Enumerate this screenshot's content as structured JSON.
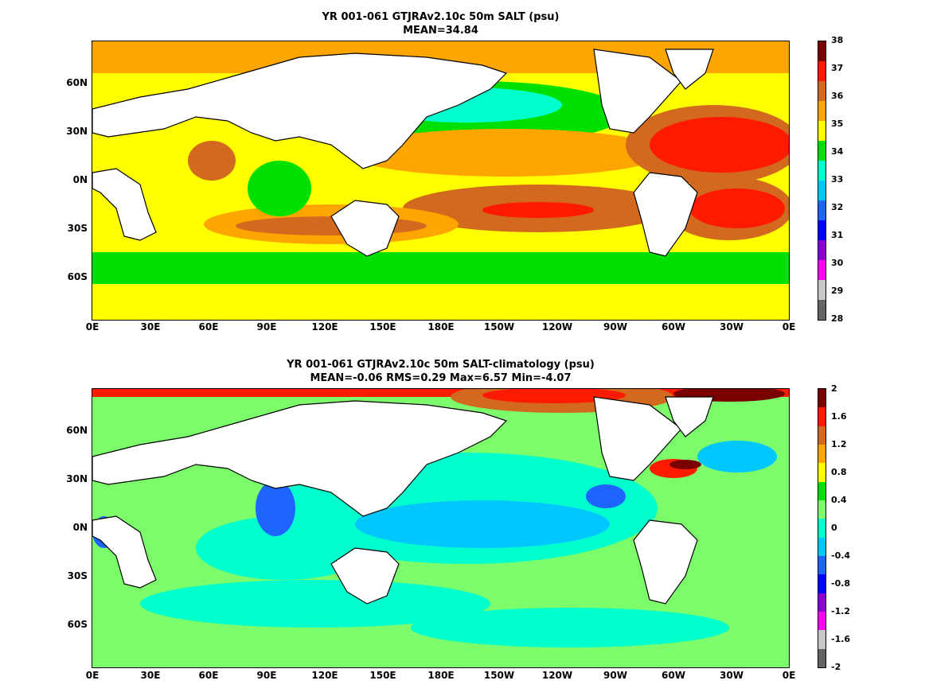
{
  "panels": [
    {
      "title_line1": "YR 001-061 GTJRAv2.10c 50m SALT (psu)",
      "title_line2": "MEAN=34.84",
      "lat_labels": [
        "60N",
        "30N",
        "0N",
        "30S",
        "60S"
      ],
      "lon_labels": [
        "0E",
        "30E",
        "60E",
        "90E",
        "120E",
        "150E",
        "180E",
        "150W",
        "120W",
        "90W",
        "60W",
        "30W",
        "0E"
      ],
      "colorbar_labels": [
        "38",
        "37",
        "36",
        "35",
        "34",
        "33",
        "32",
        "31",
        "30",
        "29",
        "28"
      ],
      "colorbar_colors": [
        "#7a0000",
        "#ff1a00",
        "#d2691e",
        "#ffa500",
        "#ffff00",
        "#00e000",
        "#00ffcc",
        "#00c8ff",
        "#1e64ff",
        "#0000ff",
        "#8a00d4",
        "#ff00ff",
        "#c8c8c8",
        "#646464"
      ]
    },
    {
      "title_line1": "YR 001-061 GTJRAv2.10c 50m SALT-climatology (psu)",
      "title_line2": "MEAN=-0.06   RMS=0.29   Max=6.57   Min=-4.07",
      "lat_labels": [
        "60N",
        "30N",
        "0N",
        "30S",
        "60S"
      ],
      "lon_labels": [
        "0E",
        "30E",
        "60E",
        "90E",
        "120E",
        "150E",
        "180E",
        "150W",
        "120W",
        "90W",
        "60W",
        "30W",
        "0E"
      ],
      "colorbar_labels": [
        "2",
        "1.6",
        "1.2",
        "0.8",
        "0.4",
        "0",
        "-0.4",
        "-0.8",
        "-1.2",
        "-1.6",
        "-2"
      ],
      "colorbar_colors": [
        "#7a0000",
        "#ff1a00",
        "#d2691e",
        "#ffa500",
        "#ffff00",
        "#00e000",
        "#7cfc6a",
        "#00ffcc",
        "#00c8ff",
        "#1e64ff",
        "#0000ff",
        "#8a00d4",
        "#ff00ff",
        "#c8c8c8",
        "#646464"
      ]
    }
  ]
}
